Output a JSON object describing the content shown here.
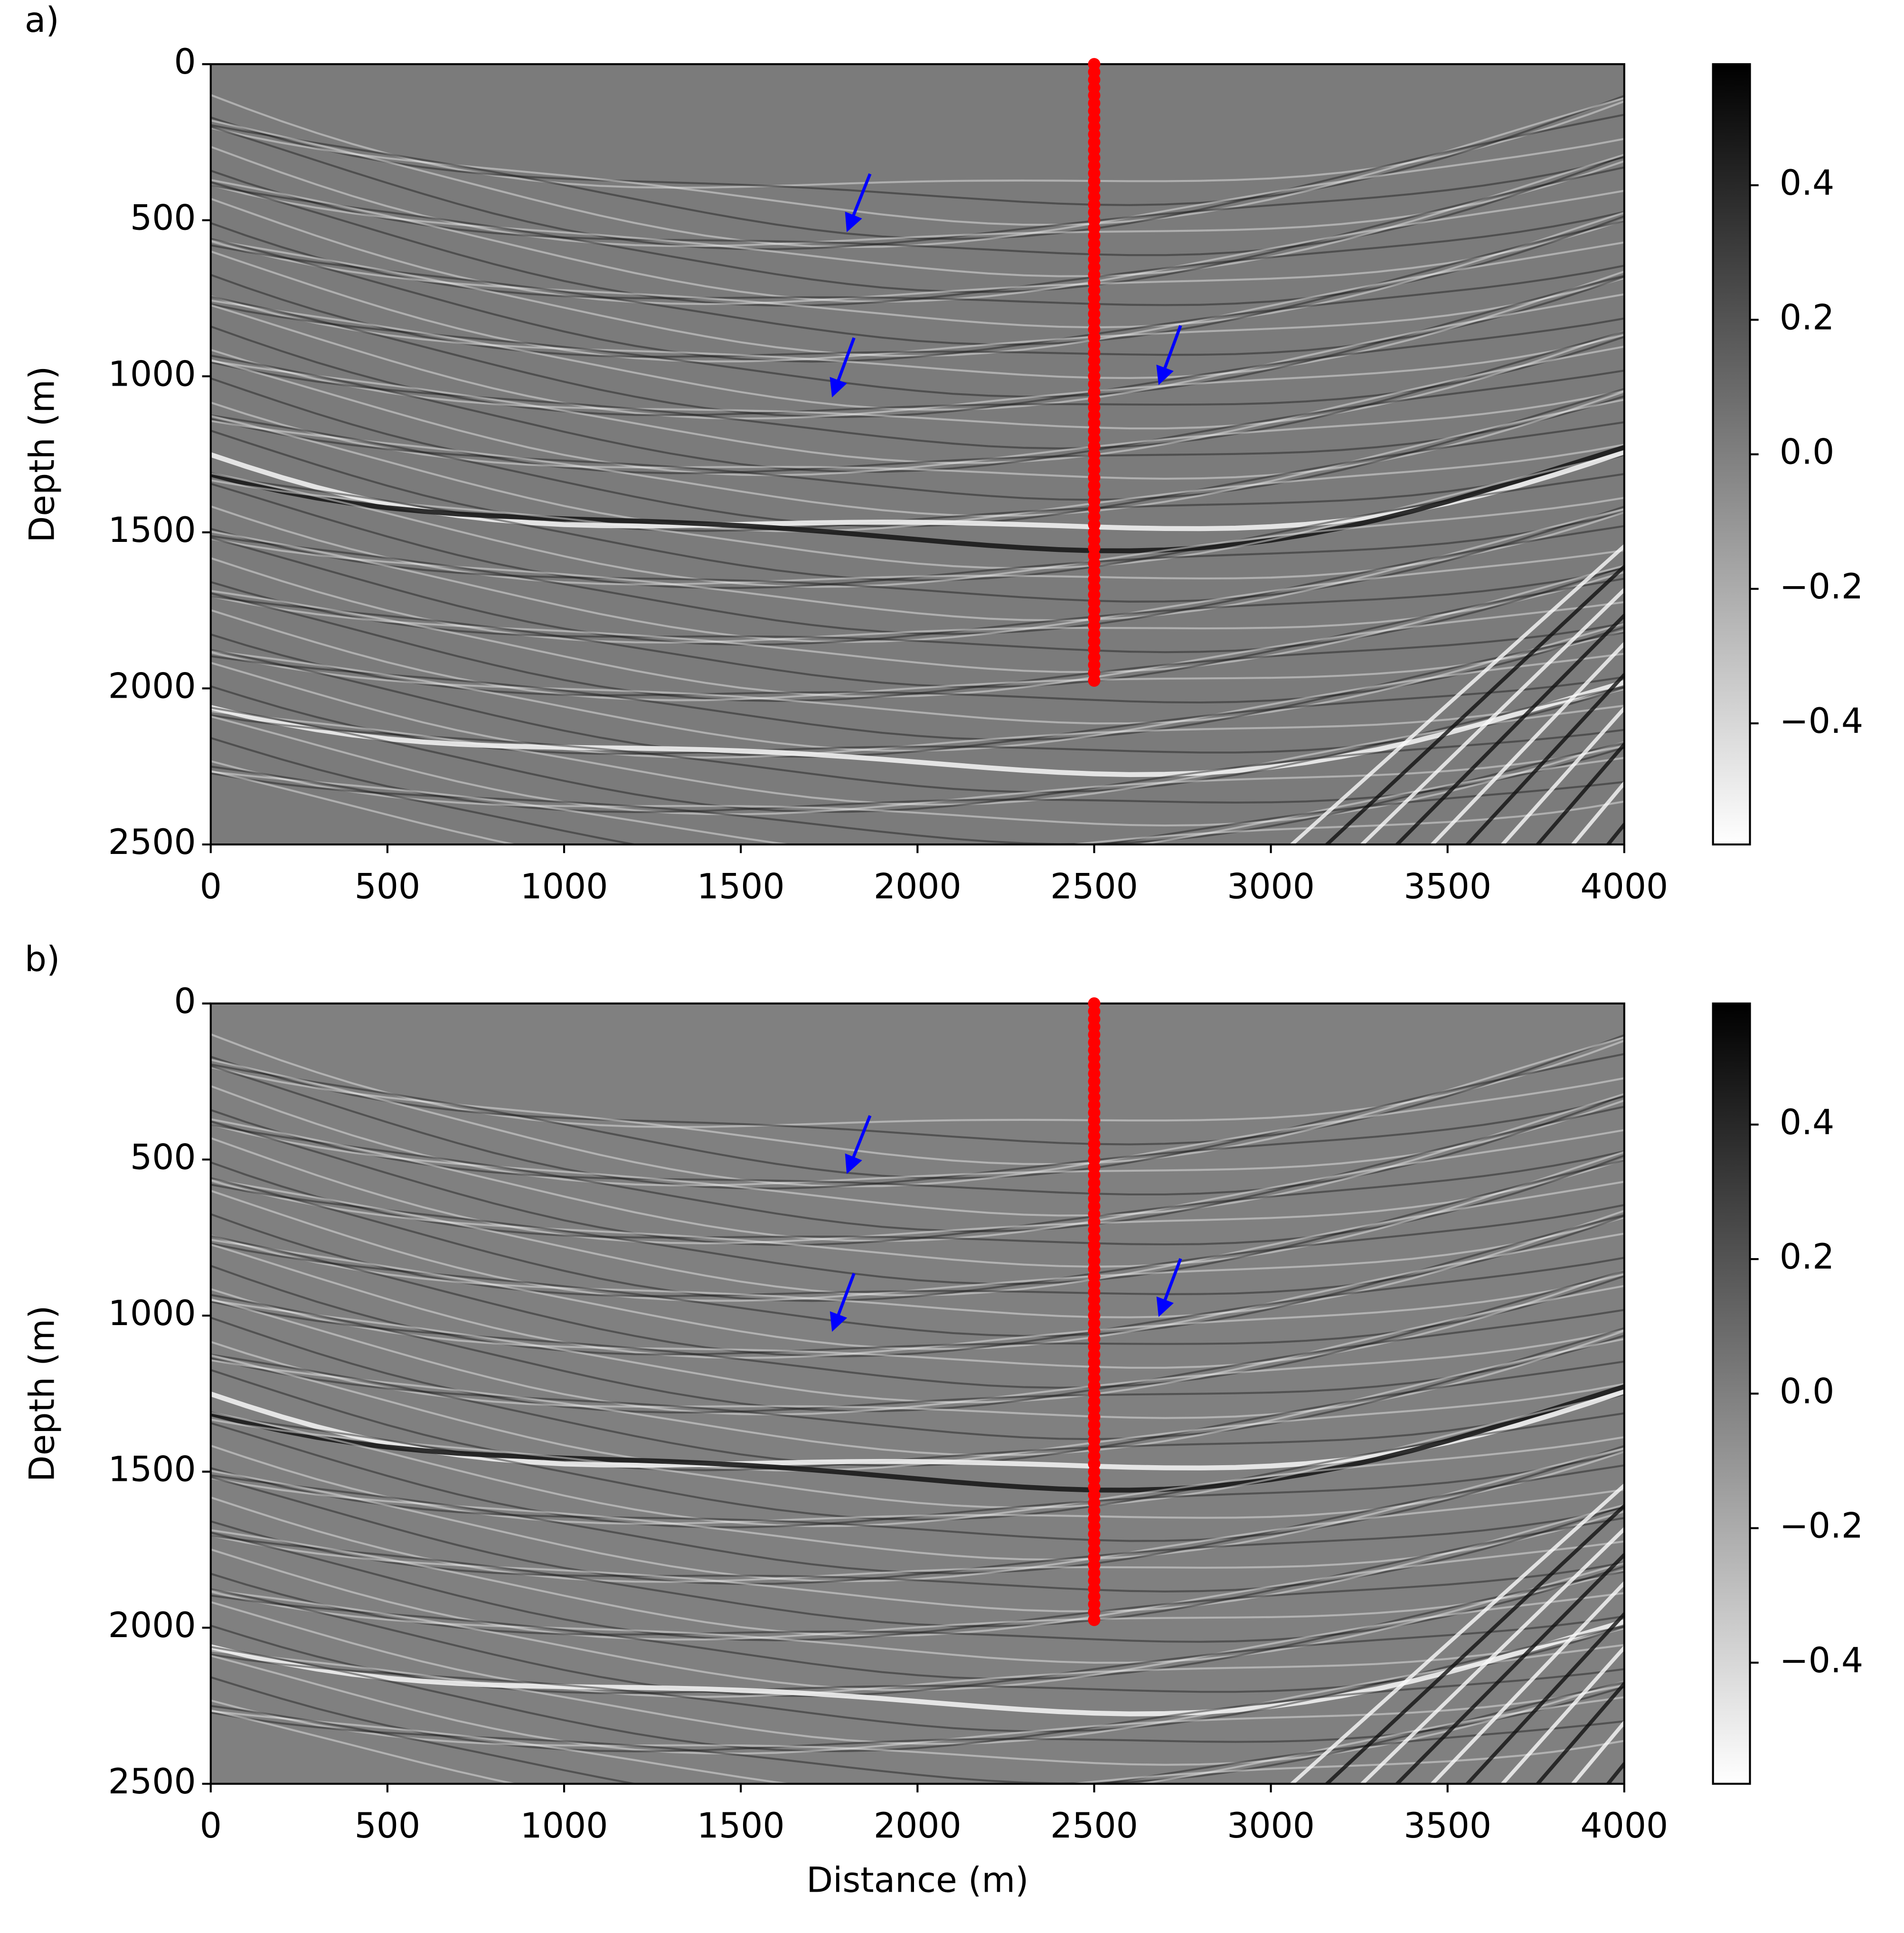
{
  "chart_data": [
    {
      "type": "scatter",
      "panel_label": "a)",
      "ylabel": "Depth (m)",
      "xlim": [
        0,
        4000
      ],
      "ylim": [
        2500,
        0
      ],
      "xticks": [
        0,
        500,
        1000,
        1500,
        2000,
        2500,
        3000,
        3500,
        4000
      ],
      "yticks": [
        0,
        500,
        1000,
        1500,
        2000,
        2500
      ],
      "series": [
        {
          "color": "#ff0000",
          "x": [
            2500,
            2500,
            2500,
            2500,
            2500,
            2500,
            2500,
            2500,
            2500,
            2500,
            2500,
            2500,
            2500,
            2500,
            2500,
            2500,
            2500,
            2500,
            2500,
            2500,
            2500,
            2500,
            2500,
            2500,
            2500,
            2500,
            2500,
            2500,
            2500,
            2500,
            2500,
            2500,
            2500,
            2500,
            2500,
            2500,
            2500,
            2500,
            2500,
            2500,
            2500,
            2500,
            2500,
            2500,
            2500,
            2500,
            2500,
            2500,
            2500,
            2500,
            2500,
            2500,
            2500,
            2500,
            2500,
            2500,
            2500,
            2500,
            2500,
            2500,
            2500,
            2500,
            2500,
            2500,
            2500,
            2500,
            2500,
            2500,
            2500,
            2500,
            2500,
            2500,
            2500,
            2500,
            2500,
            2500,
            2500,
            2500,
            2500,
            2500
          ],
          "y": [
            0,
            25,
            50,
            75,
            100,
            125,
            150,
            175,
            200,
            225,
            250,
            275,
            300,
            325,
            350,
            375,
            400,
            425,
            450,
            475,
            500,
            525,
            550,
            575,
            600,
            625,
            650,
            675,
            700,
            725,
            750,
            775,
            800,
            825,
            850,
            875,
            900,
            925,
            950,
            975,
            1000,
            1025,
            1050,
            1075,
            1100,
            1125,
            1150,
            1175,
            1200,
            1225,
            1250,
            1275,
            1300,
            1325,
            1350,
            1375,
            1400,
            1425,
            1450,
            1475,
            1500,
            1525,
            1550,
            1575,
            1600,
            1625,
            1650,
            1675,
            1700,
            1725,
            1750,
            1775,
            1800,
            1825,
            1850,
            1875,
            1900,
            1925,
            1950,
            1975
          ]
        }
      ],
      "colorbar": {
        "colormap": "gray_r",
        "lim": [
          -0.58,
          0.58
        ],
        "ticks": [
          {
            "value": -0.4,
            "label": "−0.4"
          },
          {
            "value": -0.2,
            "label": "−0.2"
          },
          {
            "value": 0,
            "label": "0.0"
          },
          0.2,
          0.4
        ]
      }
    },
    {
      "type": "scatter",
      "panel_label": "b)",
      "xlabel": "Distance (m)",
      "ylabel": "Depth (m)",
      "xlim": [
        0,
        4000
      ],
      "ylim": [
        2500,
        0
      ],
      "xticks": [
        0,
        500,
        1000,
        1500,
        2000,
        2500,
        3000,
        3500,
        4000
      ],
      "yticks": [
        0,
        500,
        1000,
        1500,
        2000,
        2500
      ],
      "series": [
        {
          "color": "#ff0000",
          "x": [
            2500,
            2500,
            2500,
            2500,
            2500,
            2500,
            2500,
            2500,
            2500,
            2500,
            2500,
            2500,
            2500,
            2500,
            2500,
            2500,
            2500,
            2500,
            2500,
            2500,
            2500,
            2500,
            2500,
            2500,
            2500,
            2500,
            2500,
            2500,
            2500,
            2500,
            2500,
            2500,
            2500,
            2500,
            2500,
            2500,
            2500,
            2500,
            2500,
            2500,
            2500,
            2500,
            2500,
            2500,
            2500,
            2500,
            2500,
            2500,
            2500,
            2500,
            2500,
            2500,
            2500,
            2500,
            2500,
            2500,
            2500,
            2500,
            2500,
            2500,
            2500,
            2500,
            2500,
            2500,
            2500,
            2500,
            2500,
            2500,
            2500,
            2500,
            2500,
            2500,
            2500,
            2500,
            2500,
            2500,
            2500,
            2500,
            2500,
            2500
          ],
          "y": [
            0,
            25,
            50,
            75,
            100,
            125,
            150,
            175,
            200,
            225,
            250,
            275,
            300,
            325,
            350,
            375,
            400,
            425,
            450,
            475,
            500,
            525,
            550,
            575,
            600,
            625,
            650,
            675,
            700,
            725,
            750,
            775,
            800,
            825,
            850,
            875,
            900,
            925,
            950,
            975,
            1000,
            1025,
            1050,
            1075,
            1100,
            1125,
            1150,
            1175,
            1200,
            1225,
            1250,
            1275,
            1300,
            1325,
            1350,
            1375,
            1400,
            1425,
            1450,
            1475,
            1500,
            1525,
            1550,
            1575,
            1600,
            1625,
            1650,
            1675,
            1700,
            1725,
            1750,
            1775,
            1800,
            1825,
            1850,
            1875,
            1900,
            1925,
            1950,
            1975
          ]
        }
      ],
      "colorbar": {
        "colormap": "gray_r",
        "lim": [
          -0.58,
          0.58
        ],
        "ticks": [
          {
            "value": -0.4,
            "label": "−0.4"
          },
          {
            "value": -0.2,
            "label": "−0.2"
          },
          {
            "value": 0,
            "label": "0.0"
          },
          0.2,
          0.4
        ]
      }
    }
  ]
}
